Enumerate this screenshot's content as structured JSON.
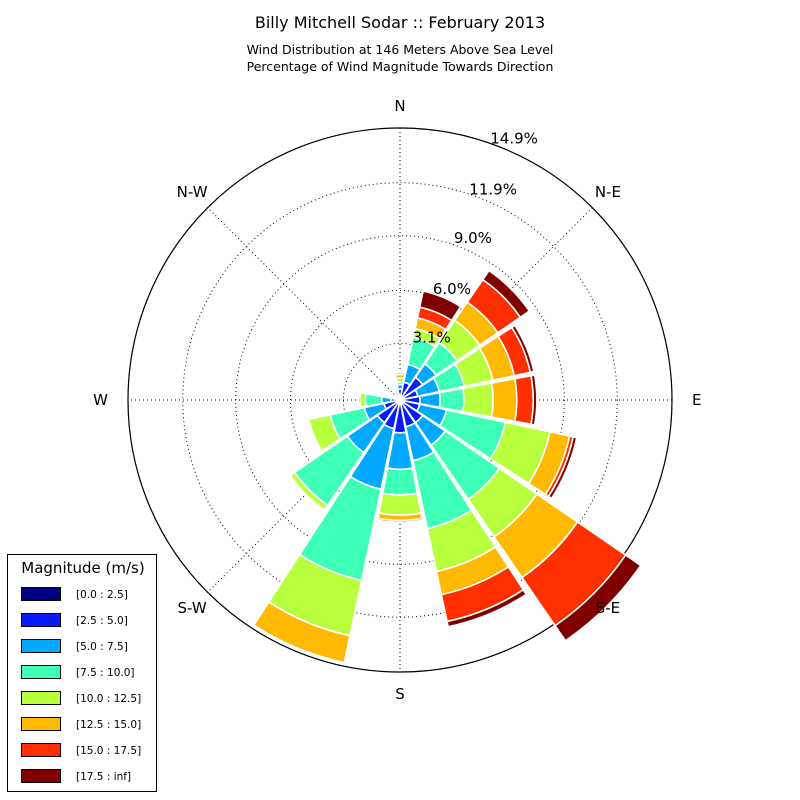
{
  "chart_data": {
    "type": "windrose",
    "title": "Billy Mitchell Sodar :: February 2013",
    "subtitle_lines": [
      "Wind Distribution at 146 Meters Above Sea Level",
      "Percentage of Wind Magnitude Towards Direction"
    ],
    "directions": [
      "N",
      "NNE",
      "NE",
      "ENE",
      "E",
      "ESE",
      "SE",
      "SSE",
      "S",
      "SSW",
      "SW",
      "WSW",
      "W",
      "WNW",
      "NW",
      "NNW"
    ],
    "direction_labels": [
      {
        "name": "N",
        "angle": 0
      },
      {
        "name": "N-E",
        "angle": 45
      },
      {
        "name": "E",
        "angle": 90
      },
      {
        "name": "S-E",
        "angle": 135
      },
      {
        "name": "S",
        "angle": 180
      },
      {
        "name": "S-W",
        "angle": 225
      },
      {
        "name": "W",
        "angle": 270
      },
      {
        "name": "N-W",
        "angle": 315
      }
    ],
    "ring_values": [
      3.1,
      6.0,
      9.0,
      11.9,
      14.9
    ],
    "ring_labels": [
      "3.1%",
      "6.0%",
      "9.0%",
      "11.9%",
      "14.9%"
    ],
    "rmax": 14.9,
    "legend_title": "Magnitude (m/s)",
    "bins": [
      {
        "label": "[0.0 : 2.5]",
        "color": "#000080"
      },
      {
        "label": "[2.5 : 5.0]",
        "color": "#0a1bfb"
      },
      {
        "label": "[5.0 : 7.5]",
        "color": "#00a8ff"
      },
      {
        "label": "[7.5 : 10.0]",
        "color": "#3dffb8"
      },
      {
        "label": "[10.0 : 12.5]",
        "color": "#b8ff3d"
      },
      {
        "label": "[12.5 : 15.0]",
        "color": "#ffb900"
      },
      {
        "label": "[15.0 : 17.5]",
        "color": "#ff2f00"
      },
      {
        "label": "[17.5 : inf]",
        "color": "#800000"
      }
    ],
    "cumulative": [
      [
        0.1,
        0.6,
        0.85,
        1.0,
        1.2,
        1.4,
        1.5,
        1.5
      ],
      [
        0.15,
        1.0,
        2.0,
        3.5,
        4.0,
        4.6,
        5.2,
        6.1
      ],
      [
        0.15,
        1.5,
        2.4,
        3.8,
        5.3,
        6.5,
        8.0,
        8.6
      ],
      [
        0.15,
        1.0,
        2.2,
        3.6,
        5.2,
        6.4,
        7.3,
        7.5
      ],
      [
        0.15,
        1.1,
        2.2,
        3.5,
        5.1,
        6.4,
        7.3,
        7.5
      ],
      [
        0.2,
        1.1,
        2.6,
        5.9,
        8.4,
        9.5,
        9.7,
        9.9
      ],
      [
        0.2,
        1.5,
        3.0,
        6.6,
        9.1,
        11.8,
        15.0,
        16.0
      ],
      [
        0.15,
        1.5,
        3.4,
        7.2,
        9.6,
        10.9,
        12.4,
        12.7
      ],
      [
        0.1,
        1.8,
        3.8,
        5.2,
        6.3,
        6.6,
        6.7,
        6.7
      ],
      [
        0.15,
        1.6,
        5.0,
        10.1,
        13.2,
        14.7,
        14.7,
        14.7
      ],
      [
        0.15,
        1.5,
        3.5,
        7.0,
        7.3,
        7.3,
        7.3,
        7.3
      ],
      [
        0.1,
        0.9,
        2.0,
        3.9,
        5.1,
        5.1,
        5.1,
        5.1
      ],
      [
        0.1,
        0.5,
        1.0,
        1.9,
        2.2,
        2.2,
        2.2,
        2.2
      ],
      [
        0.08,
        0.2,
        0.35,
        0.45,
        0.5,
        0.5,
        0.5,
        0.5
      ],
      [
        0.08,
        0.2,
        0.3,
        0.35,
        0.4,
        0.4,
        0.4,
        0.4
      ],
      [
        0.08,
        0.25,
        0.4,
        0.5,
        0.55,
        0.55,
        0.55,
        0.55
      ]
    ],
    "grid": true,
    "legend_position": "bottom-left"
  }
}
